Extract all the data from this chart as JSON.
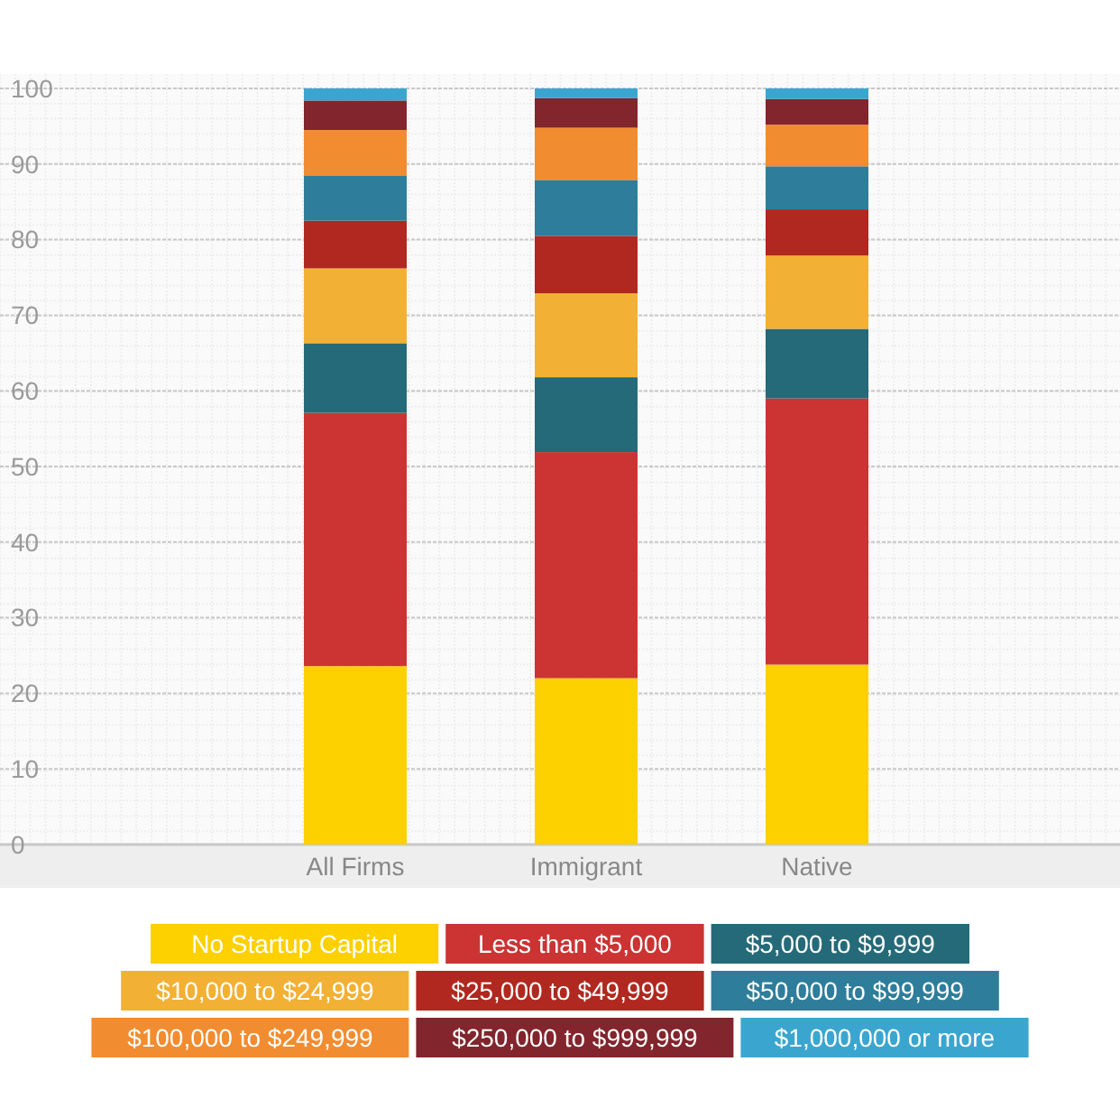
{
  "chart_data": {
    "type": "bar",
    "stacked": true,
    "categories": [
      "All Firms",
      "Immigrant",
      "Native"
    ],
    "series": [
      {
        "name": "No Startup Capital",
        "color": "#fdd000",
        "values": [
          23.6,
          22.0,
          23.8
        ]
      },
      {
        "name": "Less than $5,000",
        "color": "#cc3333",
        "values": [
          33.5,
          29.9,
          35.2
        ]
      },
      {
        "name": "$5,000 to $9,999",
        "color": "#256a78",
        "values": [
          9.2,
          9.9,
          9.2
        ]
      },
      {
        "name": "$10,000 to $24,999",
        "color": "#f2b134",
        "values": [
          9.9,
          11.1,
          9.7
        ]
      },
      {
        "name": "$25,000 to $49,999",
        "color": "#b0281f",
        "values": [
          6.3,
          7.6,
          6.1
        ]
      },
      {
        "name": "$50,000 to $99,999",
        "color": "#2e7d9b",
        "values": [
          6.0,
          7.4,
          5.7
        ]
      },
      {
        "name": "$100,000 to $249,999",
        "color": "#f28c30",
        "values": [
          6.0,
          6.9,
          5.5
        ]
      },
      {
        "name": "$250,000 to $999,999",
        "color": "#82252d",
        "values": [
          3.9,
          3.9,
          3.4
        ]
      },
      {
        "name": "$1,000,000 or more",
        "color": "#3aa6cf",
        "values": [
          1.6,
          1.3,
          1.4
        ]
      }
    ],
    "ylim": [
      0,
      100
    ],
    "yticks": [
      0,
      10,
      20,
      30,
      40,
      50,
      60,
      70,
      80,
      90,
      100
    ],
    "grid": true,
    "legend": "bottom"
  }
}
